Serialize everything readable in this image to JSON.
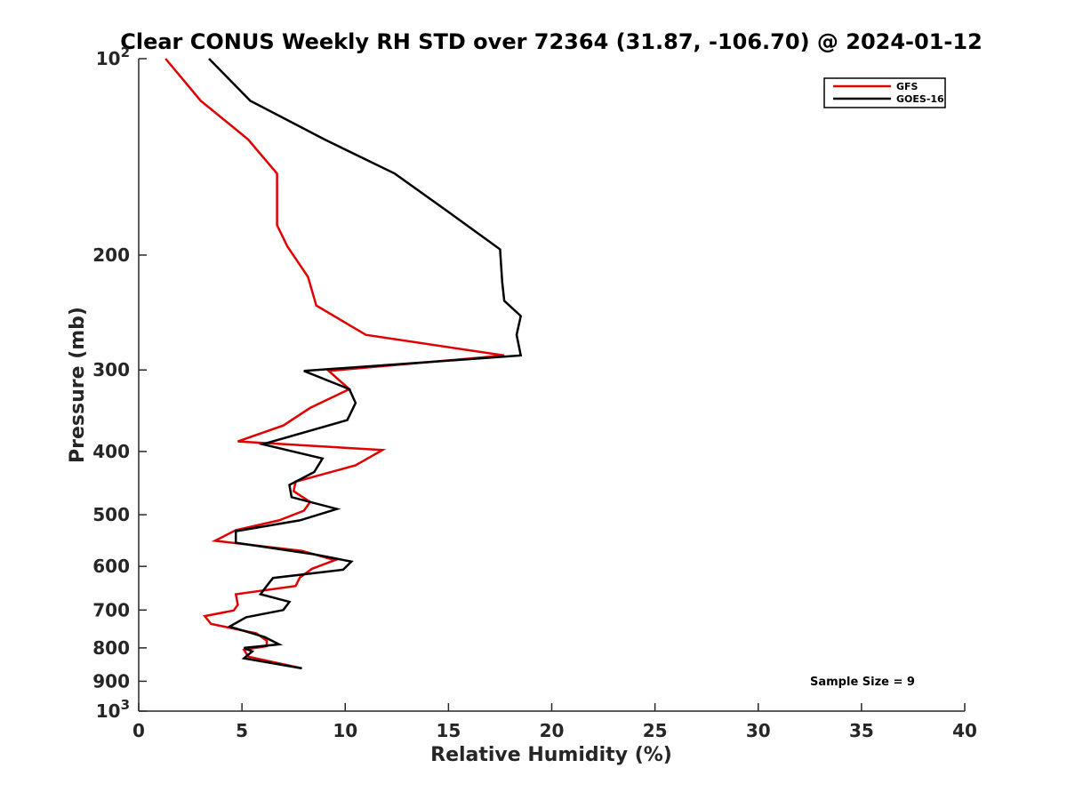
{
  "chart_data": {
    "type": "line",
    "title": "Clear CONUS Weekly RH STD over 72364 (31.87, -106.70) @ 2024-01-12",
    "xlabel": "Relative Humidity (%)",
    "ylabel": "Pressure (mb)",
    "xlim": [
      0,
      40
    ],
    "ylim": [
      100,
      1000
    ],
    "y_scale": "log",
    "y_reversed": true,
    "x_ticks": [
      0,
      5,
      10,
      15,
      20,
      25,
      30,
      35,
      40
    ],
    "x_tick_labels": [
      "0",
      "5",
      "10",
      "15",
      "20",
      "25",
      "30",
      "35",
      "40"
    ],
    "y_ticks": [
      100,
      200,
      300,
      400,
      500,
      600,
      700,
      800,
      900,
      1000
    ],
    "y_tick_labels": [
      {
        "base": "10",
        "exp": "2"
      },
      {
        "base": "200",
        "exp": ""
      },
      {
        "base": "300",
        "exp": ""
      },
      {
        "base": "400",
        "exp": ""
      },
      {
        "base": "500",
        "exp": ""
      },
      {
        "base": "600",
        "exp": ""
      },
      {
        "base": "700",
        "exp": ""
      },
      {
        "base": "800",
        "exp": ""
      },
      {
        "base": "900",
        "exp": ""
      },
      {
        "base": "10",
        "exp": "3"
      }
    ],
    "grid": false,
    "legend_position": "top-right",
    "annotation": "Sample Size = 9",
    "series": [
      {
        "name": "GFS",
        "color": "#e00000",
        "x": [
          1.3,
          3.0,
          5.3,
          6.7,
          6.7,
          7.2,
          8.2,
          8.6,
          11.0,
          17.7,
          9.2,
          10.2,
          8.3,
          7.0,
          4.8,
          11.8,
          10.5,
          7.6,
          7.5,
          8.3,
          8.0,
          6.8,
          4.7,
          3.7,
          7.9,
          9.5,
          8.4,
          7.8,
          7.6,
          4.7,
          4.8,
          4.6,
          3.2,
          3.5,
          5.7,
          6.2,
          6.2,
          5.1,
          5.3,
          7.9
        ],
        "y": [
          100,
          116,
          133,
          150,
          180,
          194,
          216,
          239,
          265,
          285,
          301,
          321,
          343,
          365,
          386,
          398,
          420,
          445,
          460,
          478,
          493,
          510,
          528,
          548,
          568,
          587,
          605,
          624,
          643,
          662,
          687,
          701,
          715,
          735,
          760,
          780,
          795,
          805,
          825,
          860
        ]
      },
      {
        "name": "GOES-16",
        "color": "#000000",
        "x": [
          3.4,
          5.4,
          9.0,
          12.4,
          14.8,
          17.5,
          17.6,
          17.7,
          18.5,
          18.3,
          18.5,
          8.0,
          10.2,
          10.5,
          10.1,
          6.0,
          8.9,
          8.5,
          7.3,
          7.4,
          9.6,
          7.8,
          4.7,
          4.7,
          8.5,
          10.3,
          9.9,
          6.5,
          6.2,
          5.9,
          7.3,
          7.0,
          5.2,
          4.4,
          6.1,
          6.8,
          5.1,
          5.5,
          5.1,
          7.9
        ],
        "y": [
          100,
          116,
          133,
          150,
          170,
          196,
          220,
          235,
          248,
          265,
          285,
          301,
          321,
          337,
          358,
          390,
          410,
          430,
          450,
          470,
          490,
          510,
          530,
          552,
          575,
          590,
          607,
          625,
          643,
          662,
          680,
          700,
          718,
          742,
          770,
          790,
          800,
          810,
          830,
          860
        ]
      }
    ]
  }
}
